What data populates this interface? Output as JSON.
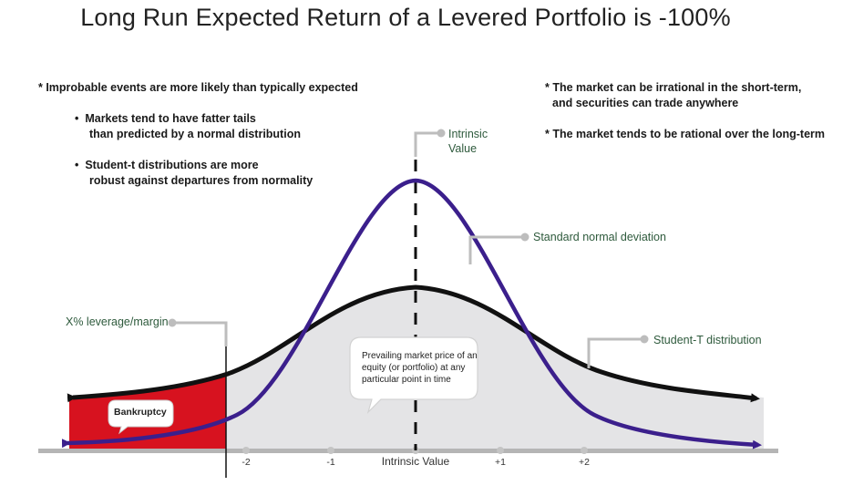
{
  "title": "Long Run Expected Return of a Levered Portfolio is -100%",
  "notes": {
    "left_heading": "* Improbable events are more likely than typically expected",
    "left_bullet_1_line_1": "Markets tend to have fatter tails",
    "left_bullet_1_line_2": "than predicted by a normal distribution",
    "left_bullet_2_line_1": "Student-t distributions are more",
    "left_bullet_2_line_2": "robust against departures from normality",
    "right_note_1_line_1": "* The market can be irrational in the short-term,",
    "right_note_1_line_2": "and securities can trade anywhere",
    "right_note_2": "* The market tends to be rational over the long-term"
  },
  "callouts": {
    "intrinsic_line_1": "Intrinsic",
    "intrinsic_line_2": "Value",
    "standard_normal": "Standard normal deviation",
    "student_t": "Student-T distribution",
    "leverage": "X% leverage/margin"
  },
  "bubble": {
    "line_1": "Prevailing market price of an",
    "line_2": "equity (or portfolio) at any",
    "line_3": "particular point in time"
  },
  "bankruptcy_label": "Bankruptcy",
  "axis": {
    "ticks": [
      "-2",
      "-1",
      "Intrinsic Value",
      "+1",
      "+2"
    ]
  },
  "colors": {
    "normal_curve": "#3b1f8c",
    "student_curve": "#111111",
    "bankruptcy_fill": "#d7121f",
    "area_fill": "#e4e4e6",
    "callout_text": "#2e5a3c",
    "leader_line": "#bdbdbd"
  }
}
